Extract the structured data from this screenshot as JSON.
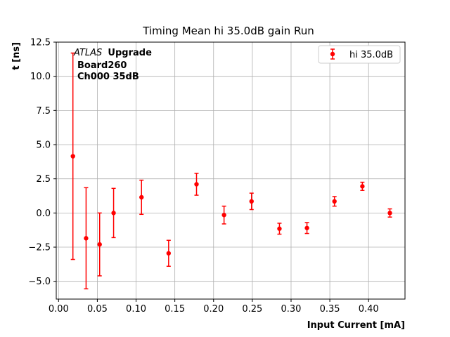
{
  "chart_data": {
    "type": "scatter",
    "title": "Timing Mean hi 35.0dB gain Run",
    "xlabel": "Input Current [mA]",
    "ylabel": "t [ns]",
    "xlim": [
      -0.003,
      0.447
    ],
    "ylim": [
      -6.3,
      12.5
    ],
    "xticks": [
      "0.00",
      "0.05",
      "0.10",
      "0.15",
      "0.20",
      "0.25",
      "0.30",
      "0.35",
      "0.40"
    ],
    "yticks": [
      "−5.0",
      "−2.5",
      "0.0",
      "2.5",
      "5.0",
      "7.5",
      "10.0",
      "12.5"
    ],
    "grid": true,
    "legend_position": "top-right",
    "annotation": {
      "italic": "ATLAS",
      "bold": "Upgrade",
      "line2": "Board260",
      "line3": "Ch000 35dB"
    },
    "series": [
      {
        "name": "hi 35.0dB",
        "color": "#ff0000",
        "marker": "circle",
        "x": [
          0.0185,
          0.0355,
          0.053,
          0.071,
          0.107,
          0.142,
          0.178,
          0.2135,
          0.249,
          0.285,
          0.3205,
          0.356,
          0.392,
          0.4275
        ],
        "y": [
          4.15,
          -1.85,
          -2.3,
          0.0,
          1.15,
          -2.95,
          2.1,
          -0.15,
          0.85,
          -1.15,
          -1.1,
          0.85,
          1.95,
          0.0
        ],
        "yerr": [
          7.55,
          3.7,
          2.3,
          1.8,
          1.25,
          0.95,
          0.8,
          0.65,
          0.6,
          0.4,
          0.4,
          0.35,
          0.3,
          0.3
        ]
      }
    ]
  }
}
